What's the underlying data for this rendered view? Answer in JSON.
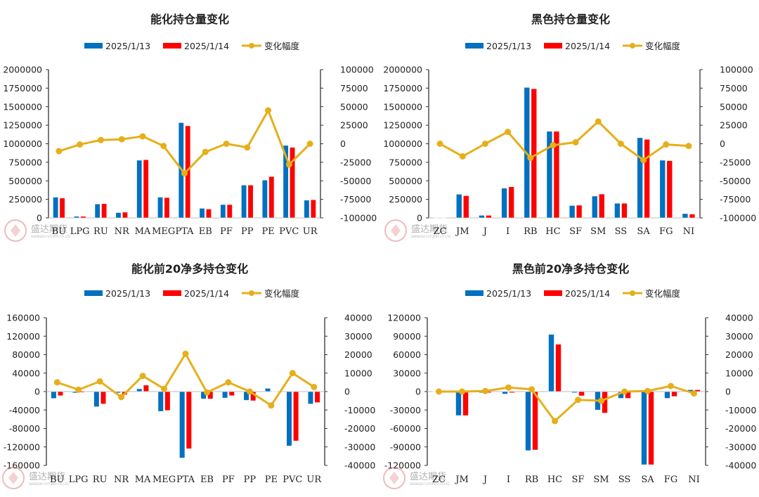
{
  "watermark": {
    "text": "盛达期货",
    "subtext": "SHENGDA FUTURES CO.,LTD"
  },
  "colors": {
    "series1": "#0070C0",
    "series2": "#FF0000",
    "line": "#E6AF1A",
    "axis": "#333333"
  },
  "chart_data": [
    {
      "type": "bar+line",
      "title": "能化持仓量变化",
      "legend": [
        "2025/1/13",
        "2025/1/14",
        "变化幅度"
      ],
      "legend_position": "top",
      "categories": [
        "BU",
        "LPG",
        "RU",
        "NR",
        "MA",
        "MEG",
        "PTA",
        "EB",
        "PF",
        "PP",
        "PE",
        "PVC",
        "UR"
      ],
      "series": [
        {
          "name": "2025/1/13",
          "axis": "left",
          "values": [
            280000,
            22000,
            188000,
            72000,
            778000,
            280000,
            1285000,
            130000,
            180000,
            443000,
            510000,
            978000,
            240000
          ]
        },
        {
          "name": "2025/1/14",
          "axis": "left",
          "values": [
            268000,
            22000,
            192000,
            78000,
            785000,
            275000,
            1242000,
            120000,
            180000,
            443000,
            558000,
            952000,
            245000
          ]
        },
        {
          "name": "变化幅度",
          "axis": "right",
          "values": [
            -10000,
            -1000,
            5000,
            6000,
            10000,
            -3000,
            -40000,
            -11000,
            0,
            -5000,
            45000,
            -28000,
            0
          ]
        }
      ],
      "ylim_left": [
        0,
        2000000
      ],
      "ystep_left": 250000,
      "ylim_right": [
        -100000,
        100000
      ],
      "ystep_right": 25000,
      "grid": false
    },
    {
      "type": "bar+line",
      "title": "黑色持仓量变化",
      "legend": [
        "2025/1/13",
        "2025/1/14",
        "变化幅度"
      ],
      "legend_position": "top",
      "categories": [
        "ZC",
        "JM",
        "J",
        "I",
        "RB",
        "HC",
        "SF",
        "SM",
        "SS",
        "SA",
        "FG",
        "NI"
      ],
      "series": [
        {
          "name": "2025/1/13",
          "axis": "left",
          "values": [
            0,
            320000,
            35000,
            402000,
            1760000,
            1168000,
            168000,
            295000,
            198000,
            1082000,
            778000,
            58000
          ]
        },
        {
          "name": "2025/1/14",
          "axis": "left",
          "values": [
            0,
            300000,
            35000,
            420000,
            1742000,
            1168000,
            172000,
            322000,
            198000,
            1060000,
            772000,
            52000
          ]
        },
        {
          "name": "变化幅度",
          "axis": "right",
          "values": [
            0,
            -17000,
            0,
            16000,
            -19000,
            -2000,
            2000,
            30000,
            0,
            -22000,
            -1000,
            -3000
          ]
        }
      ],
      "ylim_left": [
        0,
        2000000
      ],
      "ystep_left": 250000,
      "ylim_right": [
        -100000,
        100000
      ],
      "ystep_right": 25000,
      "grid": false
    },
    {
      "type": "bar+line",
      "title": "能化前20净多持仓变化",
      "legend": [
        "2025/1/13",
        "2025/1/14",
        "变化幅度"
      ],
      "legend_position": "top",
      "categories": [
        "BU",
        "LPG",
        "RU",
        "NR",
        "MA",
        "MEG",
        "PTA",
        "EB",
        "PF",
        "PP",
        "PE",
        "PVC",
        "UR"
      ],
      "series": [
        {
          "name": "2025/1/13",
          "axis": "left",
          "values": [
            -15000,
            -3000,
            -33000,
            -3000,
            6000,
            -43000,
            -144000,
            -16000,
            -14000,
            -19000,
            7000,
            -118000,
            -27000
          ]
        },
        {
          "name": "2025/1/14",
          "axis": "left",
          "values": [
            -9000,
            -2000,
            -27000,
            -7000,
            14000,
            -41000,
            -124000,
            -16000,
            -9000,
            -20000,
            -1000,
            -107000,
            -24000
          ]
        },
        {
          "name": "变化幅度",
          "axis": "right",
          "values": [
            5000,
            1000,
            5500,
            -3000,
            8500,
            1500,
            20500,
            -500,
            5000,
            0,
            -7500,
            10000,
            2500
          ]
        }
      ],
      "ylim_left": [
        -160000,
        160000
      ],
      "ystep_left": 40000,
      "ylim_right": [
        -40000,
        40000
      ],
      "ystep_right": 10000,
      "grid": false
    },
    {
      "type": "bar+line",
      "title": "黑色前20净多持仓变化",
      "legend": [
        "2025/1/13",
        "2025/1/14",
        "变化幅度"
      ],
      "legend_position": "top",
      "categories": [
        "ZC",
        "JM",
        "J",
        "I",
        "RB",
        "HC",
        "SF",
        "SM",
        "SS",
        "SA",
        "FG",
        "NI"
      ],
      "series": [
        {
          "name": "2025/1/13",
          "axis": "left",
          "values": [
            0,
            -39000,
            -2000,
            -4000,
            -96000,
            93000,
            -2000,
            -30000,
            -11000,
            -119000,
            -11000,
            3000
          ]
        },
        {
          "name": "2025/1/14",
          "axis": "left",
          "values": [
            0,
            -39000,
            -2000,
            -2000,
            -95000,
            77000,
            -7000,
            -35000,
            -11000,
            -119000,
            -8000,
            3000
          ]
        },
        {
          "name": "变化幅度",
          "axis": "right",
          "values": [
            0,
            0,
            300,
            2200,
            1200,
            -16000,
            -4500,
            -5000,
            0,
            300,
            3000,
            -1000
          ]
        }
      ],
      "ylim_left": [
        -120000,
        120000
      ],
      "ystep_left": 30000,
      "ylim_right": [
        -40000,
        40000
      ],
      "ystep_right": 10000,
      "grid": false
    }
  ]
}
